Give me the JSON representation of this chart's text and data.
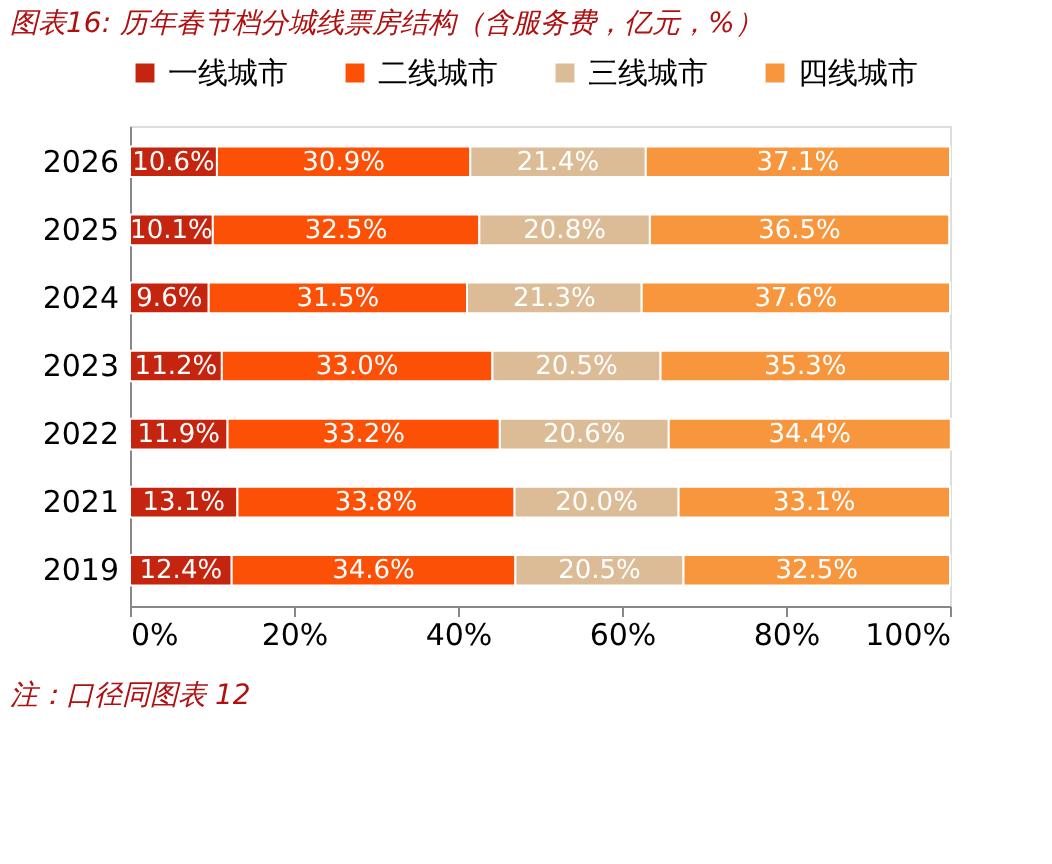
{
  "chart_data": {
    "type": "bar",
    "orientation": "horizontal",
    "stacked": true,
    "title": "图表16:  历年春节档分城线票房结构（含服务费，亿元，%）",
    "categories": [
      "2026",
      "2025",
      "2024",
      "2023",
      "2022",
      "2021",
      "2019"
    ],
    "series": [
      {
        "name": "一线城市",
        "color": "#c5250f",
        "values": [
          10.6,
          10.1,
          9.6,
          11.2,
          11.9,
          13.1,
          12.4
        ],
        "value_labels": [
          "10.6%",
          "10.1%",
          "9.6%",
          "11.2%",
          "11.9%",
          "13.1%",
          "12.4%"
        ]
      },
      {
        "name": "二线城市",
        "color": "#fc5007",
        "values": [
          30.9,
          32.5,
          31.5,
          33.0,
          33.2,
          33.8,
          34.6
        ],
        "value_labels": [
          "30.9%",
          "32.5%",
          "31.5%",
          "33.0%",
          "33.2%",
          "33.8%",
          "34.6%"
        ]
      },
      {
        "name": "三线城市",
        "color": "#dcbc97",
        "values": [
          21.4,
          20.8,
          21.3,
          20.5,
          20.6,
          20.0,
          20.5
        ],
        "value_labels": [
          "21.4%",
          "20.8%",
          "21.3%",
          "20.5%",
          "20.6%",
          "20.0%",
          "20.5%"
        ]
      },
      {
        "name": "四线城市",
        "color": "#f8963e",
        "values": [
          37.1,
          36.5,
          37.6,
          35.3,
          34.4,
          33.1,
          32.5
        ],
        "value_labels": [
          "37.1%",
          "36.5%",
          "37.6%",
          "35.3%",
          "34.4%",
          "33.1%",
          "32.5%"
        ]
      }
    ],
    "xlim": [
      0,
      100
    ],
    "xticks": [
      {
        "value": 0,
        "label": "0%"
      },
      {
        "value": 20,
        "label": "20%"
      },
      {
        "value": 40,
        "label": "40%"
      },
      {
        "value": 60,
        "label": "60%"
      },
      {
        "value": 80,
        "label": "80%"
      },
      {
        "value": 100,
        "label": "100%"
      }
    ],
    "legend": "top",
    "grid": false,
    "annotations": [
      "注：口径同图表 12"
    ]
  }
}
